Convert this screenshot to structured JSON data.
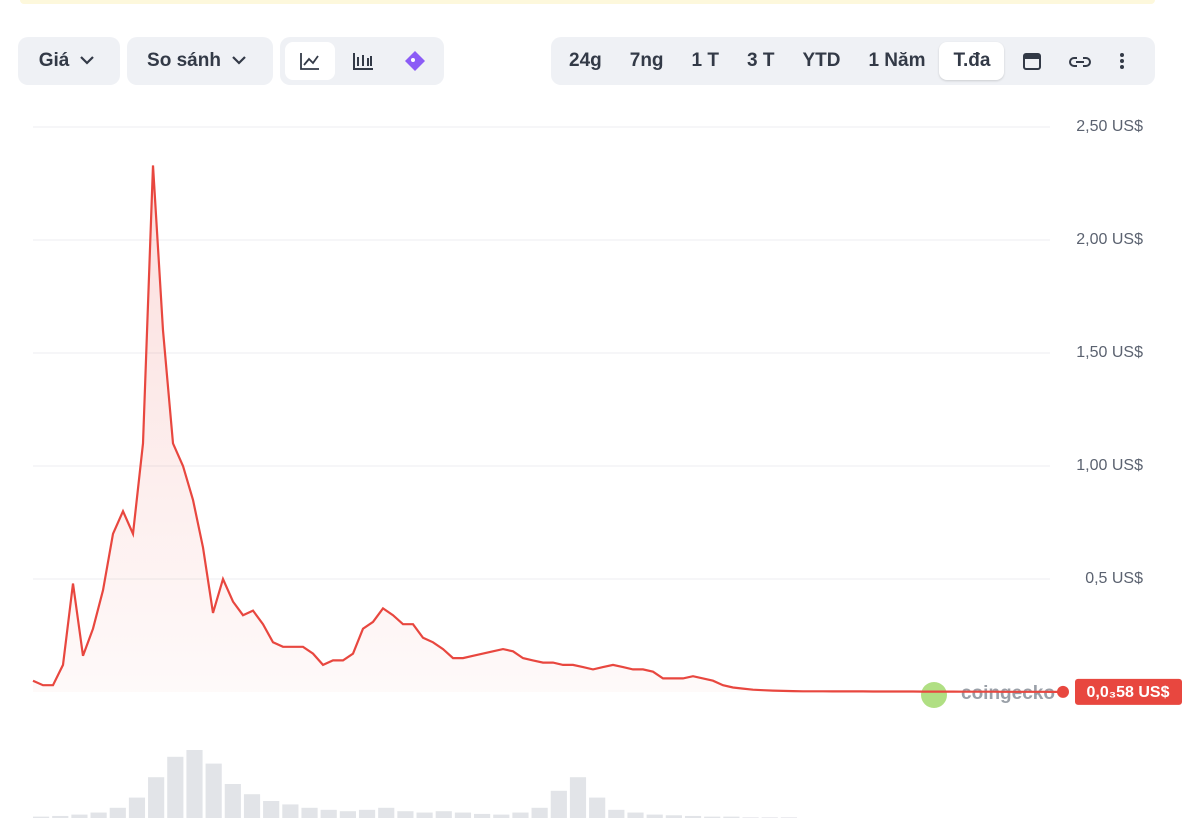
{
  "toolbar": {
    "price_menu": "Giá",
    "compare_menu": "So sánh",
    "ranges": [
      "24g",
      "7ng",
      "1 T",
      "3 T",
      "YTD",
      "1 Năm",
      "T.đa"
    ],
    "active_range": 6
  },
  "watermark": "coingecko",
  "chart_data": {
    "type": "line",
    "color": "#e8473f",
    "ylim": [
      0,
      2.5
    ],
    "yticks": [
      {
        "value": 0.5,
        "label": "0,5 US$"
      },
      {
        "value": 1,
        "label": "1,00 US$"
      },
      {
        "value": 1.5,
        "label": "1,50 US$"
      },
      {
        "value": 2,
        "label": "2,00 US$"
      },
      {
        "value": 2.5,
        "label": "2,50 US$"
      }
    ],
    "grid": true,
    "values": [
      0.05,
      0.03,
      0.03,
      0.12,
      0.48,
      0.16,
      0.28,
      0.45,
      0.7,
      0.8,
      0.7,
      1.1,
      2.33,
      1.6,
      1.1,
      1.0,
      0.85,
      0.64,
      0.35,
      0.5,
      0.4,
      0.34,
      0.36,
      0.3,
      0.22,
      0.2,
      0.2,
      0.2,
      0.17,
      0.12,
      0.14,
      0.14,
      0.17,
      0.28,
      0.31,
      0.37,
      0.34,
      0.3,
      0.3,
      0.24,
      0.22,
      0.19,
      0.15,
      0.15,
      0.16,
      0.17,
      0.18,
      0.19,
      0.18,
      0.15,
      0.14,
      0.13,
      0.13,
      0.12,
      0.12,
      0.11,
      0.1,
      0.11,
      0.12,
      0.11,
      0.1,
      0.1,
      0.09,
      0.06,
      0.06,
      0.06,
      0.07,
      0.06,
      0.05,
      0.03,
      0.02,
      0.015,
      0.01,
      0.008,
      0.006,
      0.005,
      0.004,
      0.003,
      0.003,
      0.003,
      0.0028,
      0.0027,
      0.0026,
      0.0025,
      0.0024,
      0.0023,
      0.0022,
      0.0021,
      0.002,
      0.0019,
      0.0018,
      0.0017,
      0.0016,
      0.0015,
      0.0014,
      0.0013,
      0.0012,
      0.0011,
      0.001,
      0.0009,
      0.0008,
      0.0007,
      0.0006,
      0.00058
    ],
    "current_value_label": "0,0₃58 US$",
    "volume": {
      "color": "#e2e4e8",
      "values": [
        2,
        3,
        5,
        8,
        15,
        30,
        60,
        90,
        100,
        80,
        50,
        35,
        25,
        20,
        15,
        12,
        10,
        12,
        15,
        10,
        8,
        10,
        8,
        6,
        5,
        8,
        15,
        40,
        60,
        30,
        12,
        8,
        5,
        4,
        3,
        2,
        2,
        1,
        1,
        1
      ]
    }
  }
}
